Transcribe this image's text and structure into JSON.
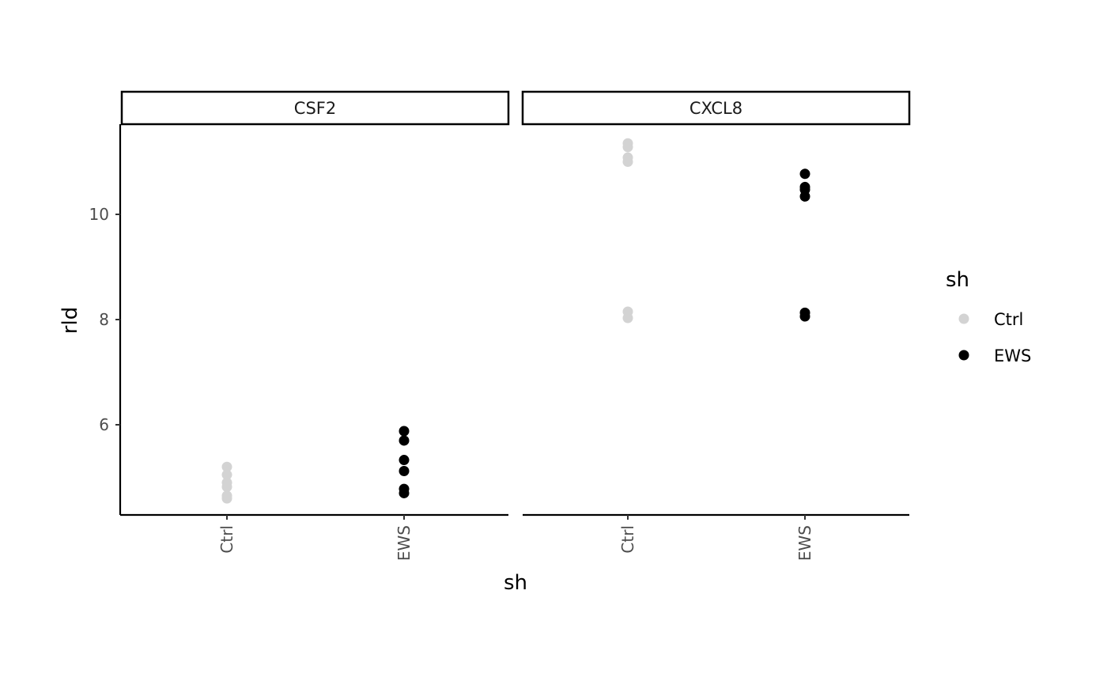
{
  "chart_data": {
    "type": "scatter",
    "facet_variable": "gene",
    "facets": [
      "CSF2",
      "CXCL8"
    ],
    "xlabel": "sh",
    "ylabel": "rld",
    "categories": [
      "Ctrl",
      "EWS"
    ],
    "ylim": [
      4.3,
      11.75
    ],
    "yticks": [
      6,
      8,
      10
    ],
    "grid": false,
    "legend": {
      "title": "sh",
      "position": "right",
      "entries": [
        {
          "label": "Ctrl",
          "color": "#d3d3d3"
        },
        {
          "label": "EWS",
          "color": "#000000"
        }
      ]
    },
    "series": [
      {
        "facet": "CSF2",
        "points": [
          {
            "sh": "Ctrl",
            "rld": 5.2
          },
          {
            "sh": "Ctrl",
            "rld": 5.05
          },
          {
            "sh": "Ctrl",
            "rld": 4.9
          },
          {
            "sh": "Ctrl",
            "rld": 4.82
          },
          {
            "sh": "Ctrl",
            "rld": 4.65
          },
          {
            "sh": "Ctrl",
            "rld": 4.6
          },
          {
            "sh": "EWS",
            "rld": 5.88
          },
          {
            "sh": "EWS",
            "rld": 5.7
          },
          {
            "sh": "EWS",
            "rld": 5.33
          },
          {
            "sh": "EWS",
            "rld": 5.12
          },
          {
            "sh": "EWS",
            "rld": 4.78
          },
          {
            "sh": "EWS",
            "rld": 4.7
          }
        ]
      },
      {
        "facet": "CXCL8",
        "points": [
          {
            "sh": "Ctrl",
            "rld": 11.35
          },
          {
            "sh": "Ctrl",
            "rld": 11.28
          },
          {
            "sh": "Ctrl",
            "rld": 11.08
          },
          {
            "sh": "Ctrl",
            "rld": 11.0
          },
          {
            "sh": "Ctrl",
            "rld": 8.15
          },
          {
            "sh": "Ctrl",
            "rld": 8.03
          },
          {
            "sh": "EWS",
            "rld": 10.77
          },
          {
            "sh": "EWS",
            "rld": 10.52
          },
          {
            "sh": "EWS",
            "rld": 10.47
          },
          {
            "sh": "EWS",
            "rld": 10.34
          },
          {
            "sh": "EWS",
            "rld": 8.13
          },
          {
            "sh": "EWS",
            "rld": 8.06
          }
        ]
      }
    ],
    "colors": {
      "Ctrl": "#d3d3d3",
      "EWS": "#000000"
    }
  }
}
